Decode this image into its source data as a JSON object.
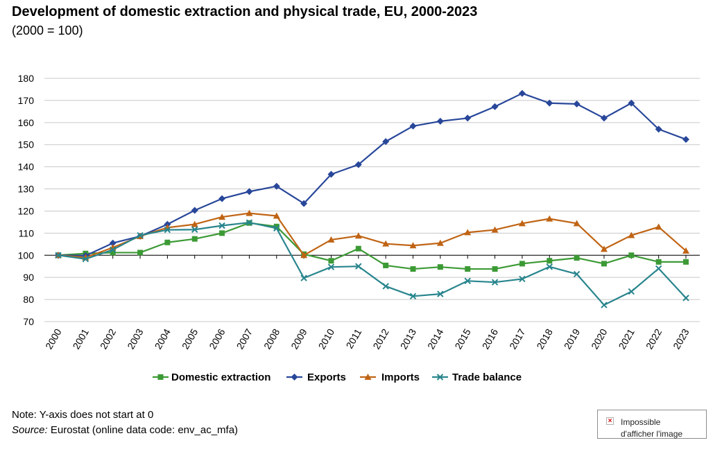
{
  "title": "Development of domestic extraction and physical trade, EU, 2000-2023",
  "subtitle": "(2000 = 100)",
  "note": "Note: Y-axis does not start at 0",
  "source": {
    "label": "Source:",
    "text": " Eurostat (online data code: env_ac_mfa)"
  },
  "broken_image": {
    "alt_line1": "Impossible",
    "alt_line2": "d'afficher l'image"
  },
  "chart_data": {
    "type": "line",
    "title": "Development of domestic extraction and physical trade, EU, 2000-2023",
    "subtitle": "(2000 = 100)",
    "xlabel": "",
    "ylabel": "",
    "ylim": [
      70,
      180
    ],
    "yticks": [
      70,
      80,
      90,
      100,
      110,
      120,
      130,
      140,
      150,
      160,
      170,
      180
    ],
    "grid": true,
    "legend": "bottom",
    "categories": [
      "2000",
      "2001",
      "2002",
      "2003",
      "2004",
      "2005",
      "2006",
      "2007",
      "2008",
      "2009",
      "2010",
      "2011",
      "2012",
      "2013",
      "2014",
      "2015",
      "2016",
      "2017",
      "2018",
      "2019",
      "2020",
      "2021",
      "2022",
      "2023"
    ],
    "series": [
      {
        "name": "Domestic extraction",
        "color": "#3c9a35",
        "marker": "square",
        "values": [
          100,
          100.8,
          101.2,
          101.2,
          105.8,
          107.4,
          110,
          114.6,
          113,
          100.5,
          97.5,
          103,
          95.4,
          93.8,
          94.7,
          93.8,
          93.8,
          96.2,
          97.5,
          98.8,
          96.2,
          100,
          97,
          97
        ]
      },
      {
        "name": "Exports",
        "color": "#28479a",
        "marker": "diamond",
        "values": [
          100,
          99.8,
          105.5,
          108.6,
          114,
          120.3,
          125.6,
          128.8,
          131.2,
          123.4,
          136.6,
          141,
          151.4,
          158.4,
          160.6,
          162,
          167.2,
          173.2,
          168.8,
          168.4,
          162,
          168.8,
          157,
          152.4
        ]
      },
      {
        "name": "Imports",
        "color": "#c06414",
        "marker": "triangle",
        "values": [
          100,
          99,
          103.5,
          108.6,
          112.5,
          114,
          117.3,
          119,
          117.8,
          100,
          107,
          108.8,
          105.2,
          104.4,
          105.5,
          110.3,
          111.5,
          114.4,
          116.5,
          114.4,
          102.8,
          109,
          112.8,
          102
        ]
      },
      {
        "name": "Trade balance",
        "color": "#28858d",
        "marker": "x",
        "values": [
          100,
          98.3,
          102.5,
          109,
          111.5,
          111.6,
          113.4,
          114.8,
          112.2,
          89.7,
          94.7,
          95,
          86,
          81.5,
          82.5,
          88.4,
          87.8,
          89.3,
          94.8,
          91.5,
          77.5,
          83.6,
          94,
          80.7
        ]
      }
    ]
  }
}
